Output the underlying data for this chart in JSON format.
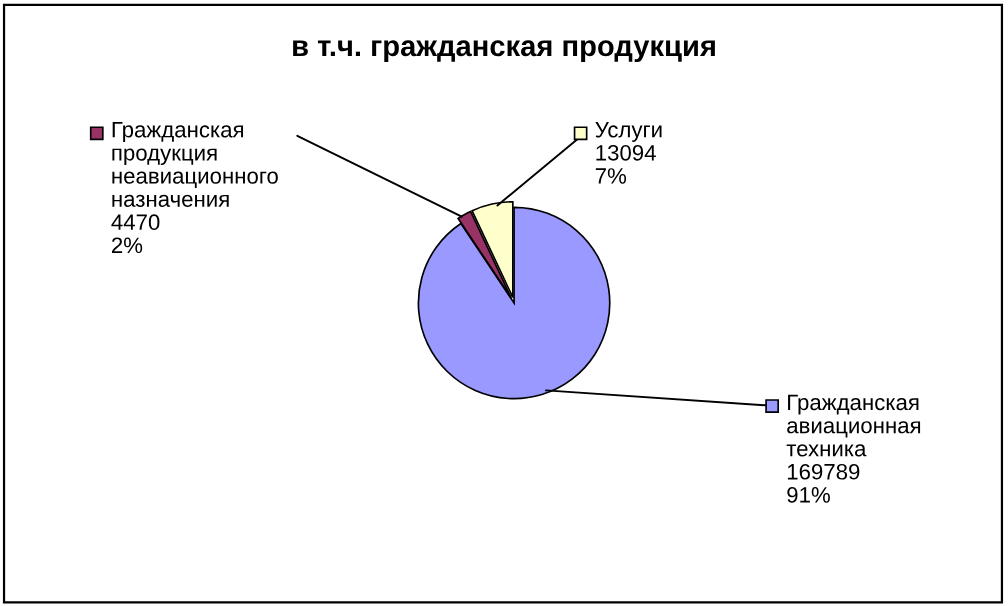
{
  "chart_data": {
    "type": "pie",
    "title": "в т.ч. гражданская продукция",
    "categories": [
      "Гражданская авиационная техника",
      "Гражданская продукция неавиационного назначения",
      "Услуги"
    ],
    "values": [
      169789,
      4470,
      13094
    ],
    "colors": [
      "#9999ff",
      "#993366",
      "#ffffcc"
    ],
    "legend": "top",
    "value_labels": [
      "169789 91%",
      "4470 2%",
      "13094 7%"
    ]
  }
}
